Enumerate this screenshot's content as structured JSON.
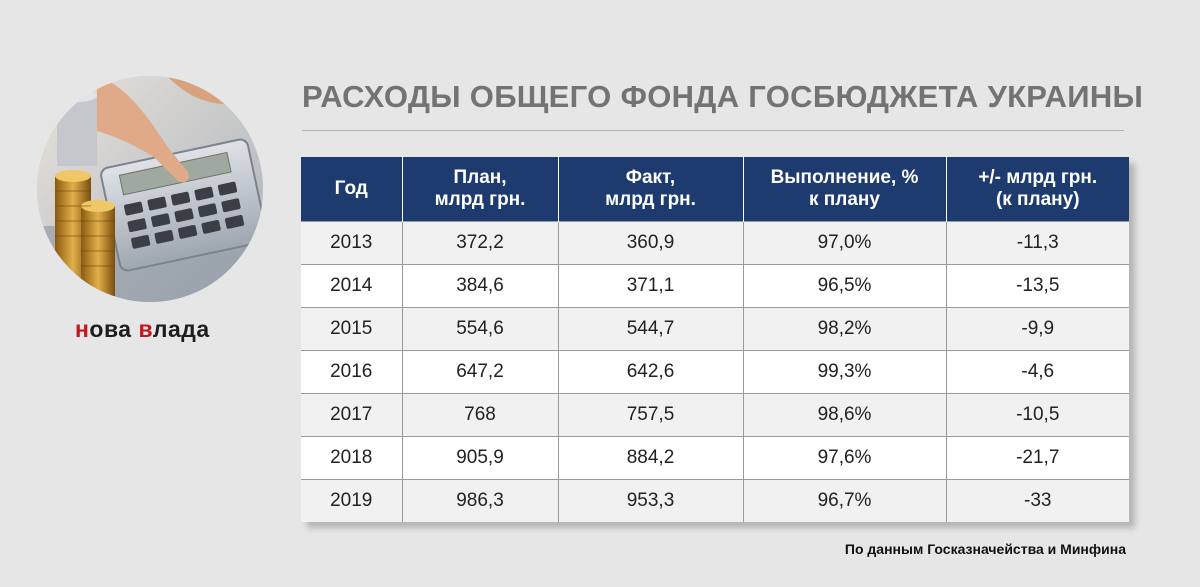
{
  "title": "РАСХОДЫ ОБЩЕГО ФОНДА ГОСБЮДЖЕТА УКРАИНЫ",
  "brand": {
    "part1": "н",
    "part2": "ова ",
    "part3": "в",
    "part4": "лада"
  },
  "table": {
    "headers": [
      {
        "line1": "Год",
        "line2": ""
      },
      {
        "line1": "План,",
        "line2": "млрд грн."
      },
      {
        "line1": "Факт,",
        "line2": "млрд грн."
      },
      {
        "line1": "Выполнение, %",
        "line2": "к плану"
      },
      {
        "line1": "+/- млрд грн.",
        "line2": "(к плану)"
      }
    ],
    "rows": [
      [
        "2013",
        "372,2",
        "360,9",
        "97,0%",
        "-11,3"
      ],
      [
        "2014",
        "384,6",
        "371,1",
        "96,5%",
        "-13,5"
      ],
      [
        "2015",
        "554,6",
        "544,7",
        "98,2%",
        "-9,9"
      ],
      [
        "2016",
        "647,2",
        "642,6",
        "99,3%",
        "-4,6"
      ],
      [
        "2017",
        "768",
        "757,5",
        "98,6%",
        "-10,5"
      ],
      [
        "2018",
        "905,9",
        "884,2",
        "97,6%",
        "-21,7"
      ],
      [
        "2019",
        "986,3",
        "953,3",
        "96,7%",
        "-33"
      ]
    ]
  },
  "source": "По данным Госказначейства и Минфина",
  "colors": {
    "header_bg": "#1e3b70",
    "title": "#737373",
    "brand_red": "#c8141c",
    "background": "#e6e6e6"
  }
}
